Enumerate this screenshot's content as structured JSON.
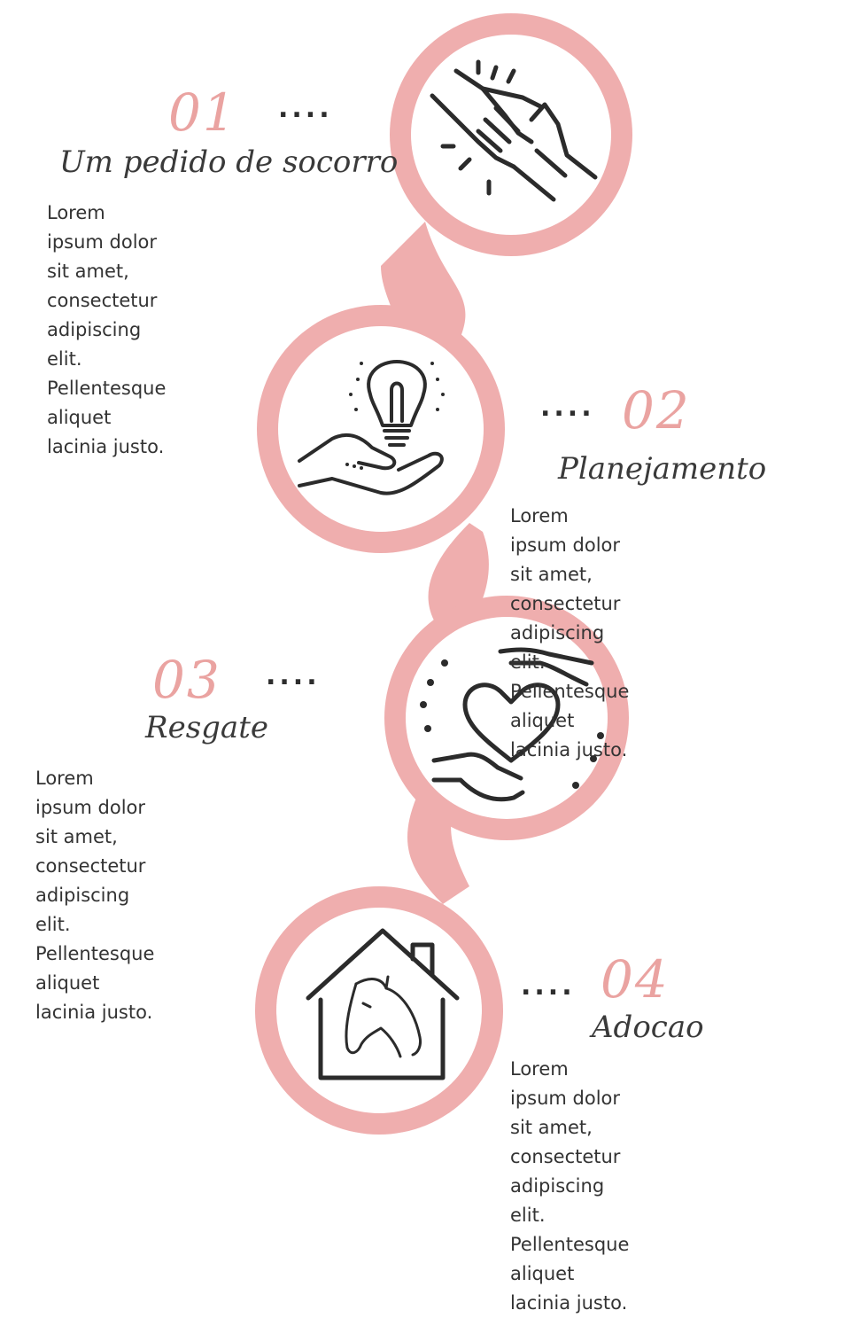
{
  "colors": {
    "accent": "#eaa3a1",
    "ring": "#efaeae",
    "ink": "#2b2b2b",
    "text": "#333333"
  },
  "steps": [
    {
      "number": "01",
      "dots": "....",
      "title": "Um pedido de socorro",
      "description": "Lorem ipsum dolor sit amet,\nconsectetur adipiscing elit.\nPellentesque aliquet lacinia justo.",
      "icon": "helping-hands-icon"
    },
    {
      "number": "02",
      "dots": "....",
      "title": "Planejamento",
      "description": "Lorem ipsum dolor sit amet,\nconsectetur adipiscing elit.\nPellentesque aliquet lacinia justo.",
      "icon": "idea-hand-icon"
    },
    {
      "number": "03",
      "dots": "....",
      "title": "Resgate",
      "description": "Lorem ipsum dolor sit amet,\nconsectetur adipiscing elit.\nPellentesque aliquet lacinia justo.",
      "icon": "heart-hands-icon"
    },
    {
      "number": "04",
      "dots": "....",
      "title": "Adocao",
      "description": "Lorem ipsum dolor sit amet,\nconsectetur adipiscing elit.\nPellentesque aliquet lacinia justo.",
      "icon": "horse-house-icon"
    }
  ]
}
